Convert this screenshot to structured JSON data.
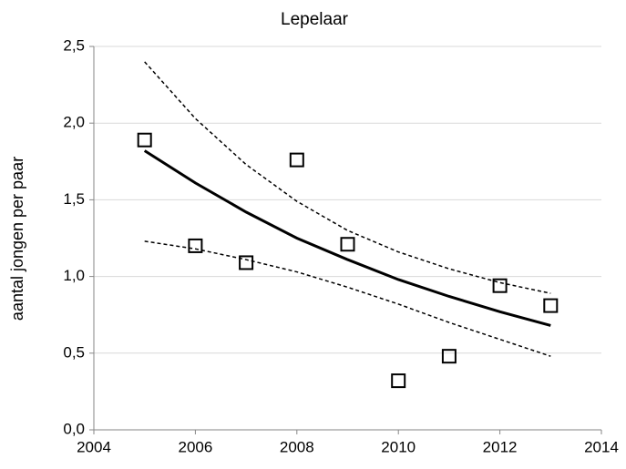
{
  "chart_data": {
    "type": "scatter",
    "title": "Lepelaar",
    "y_label": "aantal jongen per paar",
    "x": [
      2005,
      2006,
      2007,
      2008,
      2009,
      2010,
      2011,
      2012,
      2013
    ],
    "series": [
      {
        "style": "marker",
        "color": "#000000",
        "values": [
          1.89,
          1.2,
          1.09,
          1.76,
          1.21,
          0.32,
          0.48,
          0.94,
          0.81
        ]
      },
      {
        "style": "solid",
        "color": "#000000",
        "values": [
          1.82,
          1.61,
          1.42,
          1.25,
          1.11,
          0.98,
          0.87,
          0.77,
          0.68
        ]
      },
      {
        "style": "dashed",
        "color": "#000000",
        "values": [
          2.4,
          2.03,
          1.73,
          1.49,
          1.3,
          1.16,
          1.05,
          0.96,
          0.89
        ]
      },
      {
        "style": "dashed",
        "color": "#000000",
        "values": [
          1.23,
          1.18,
          1.11,
          1.03,
          0.93,
          0.82,
          0.7,
          0.59,
          0.48
        ]
      }
    ],
    "xlim": [
      2004,
      2014
    ],
    "xticks": [
      2004,
      2006,
      2008,
      2010,
      2012,
      2014
    ],
    "ylim": [
      0,
      2.5
    ],
    "yticks": [
      {
        "value": 0,
        "label": "0,0"
      },
      {
        "value": 0.5,
        "label": "0,5"
      },
      {
        "value": 1,
        "label": "1,0"
      },
      {
        "value": 1.5,
        "label": "1,5"
      },
      {
        "value": 2,
        "label": "2,0"
      },
      {
        "value": 2.5,
        "label": "2,5"
      }
    ],
    "grid": true
  }
}
